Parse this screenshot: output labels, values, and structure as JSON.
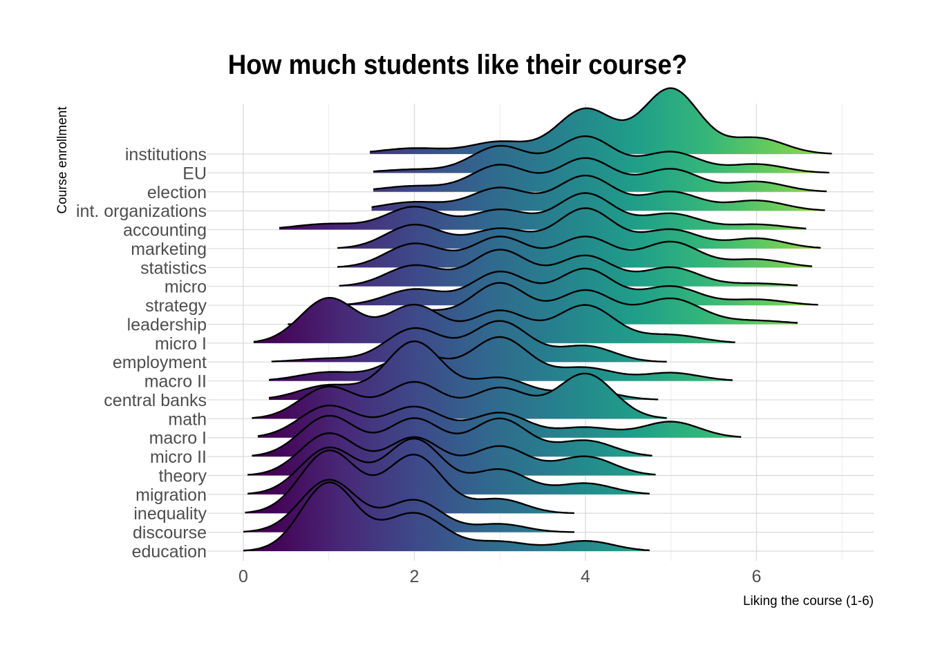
{
  "chart_data": {
    "type": "ridgeline",
    "title": "How much students like their course?",
    "xlabel": "Liking the course (1-6)",
    "ylabel": "Course enrollment",
    "xlim": [
      -0.4,
      7.4
    ],
    "x_ticks": [
      0,
      2,
      4,
      6
    ],
    "grid": true,
    "fill_colormap": "viridis",
    "fill_range": [
      1,
      6
    ],
    "categories": [
      "education",
      "discourse",
      "inequality",
      "migration",
      "theory",
      "micro II",
      "macro I",
      "math",
      "central banks",
      "macro II",
      "employment",
      "micro I",
      "leadership",
      "strategy",
      "micro",
      "statistics",
      "marketing",
      "accounting",
      "int. organizations",
      "election",
      "EU",
      "institutions"
    ],
    "series": [
      {
        "name": "education",
        "range": [
          0.0,
          4.75
        ],
        "peaks": [
          [
            1,
            2.35,
            0.32
          ],
          [
            2,
            1.3,
            0.35
          ],
          [
            3,
            0.32,
            0.33
          ],
          [
            4,
            0.35,
            0.33
          ]
        ]
      },
      {
        "name": "discourse",
        "range": [
          0.0,
          3.87
        ],
        "peaks": [
          [
            1,
            1.8,
            0.33
          ],
          [
            2,
            1.1,
            0.32
          ],
          [
            3,
            0.28,
            0.3
          ]
        ]
      },
      {
        "name": "inequality",
        "range": [
          0.02,
          3.87
        ],
        "peaks": [
          [
            1,
            2.15,
            0.33
          ],
          [
            2,
            2.0,
            0.33
          ],
          [
            3,
            0.48,
            0.3
          ]
        ]
      },
      {
        "name": "migration",
        "range": [
          0.05,
          4.75
        ],
        "peaks": [
          [
            1,
            1.6,
            0.33
          ],
          [
            2,
            1.9,
            0.33
          ],
          [
            3,
            0.85,
            0.32
          ],
          [
            4,
            0.38,
            0.32
          ]
        ]
      },
      {
        "name": "theory",
        "range": [
          0.05,
          4.82
        ],
        "peaks": [
          [
            1,
            1.45,
            0.33
          ],
          [
            2,
            1.3,
            0.32
          ],
          [
            3,
            1.0,
            0.33
          ],
          [
            4,
            0.65,
            0.33
          ]
        ]
      },
      {
        "name": "micro II",
        "range": [
          0.1,
          4.78
        ],
        "peaks": [
          [
            1,
            1.4,
            0.33
          ],
          [
            2,
            1.3,
            0.32
          ],
          [
            3,
            1.3,
            0.33
          ],
          [
            4,
            0.55,
            0.33
          ]
        ]
      },
      {
        "name": "macro I",
        "range": [
          0.17,
          5.82
        ],
        "peaks": [
          [
            1,
            1.1,
            0.34
          ],
          [
            2,
            1.05,
            0.33
          ],
          [
            3,
            0.85,
            0.33
          ],
          [
            4,
            0.35,
            0.34
          ],
          [
            5,
            0.55,
            0.33
          ]
        ]
      },
      {
        "name": "math",
        "range": [
          0.1,
          4.95
        ],
        "peaks": [
          [
            1,
            1.1,
            0.33
          ],
          [
            2,
            1.25,
            0.33
          ],
          [
            3,
            1.05,
            0.33
          ],
          [
            4,
            1.55,
            0.33
          ]
        ]
      },
      {
        "name": "central banks",
        "range": [
          0.3,
          4.85
        ],
        "peaks": [
          [
            1,
            0.5,
            0.35
          ],
          [
            2,
            2.0,
            0.33
          ],
          [
            3,
            0.75,
            0.34
          ],
          [
            4,
            0.35,
            0.33
          ]
        ]
      },
      {
        "name": "macro II",
        "range": [
          0.3,
          5.72
        ],
        "peaks": [
          [
            1,
            0.3,
            0.35
          ],
          [
            2,
            0.95,
            0.33
          ],
          [
            3,
            1.5,
            0.34
          ],
          [
            4,
            0.45,
            0.33
          ],
          [
            5,
            0.28,
            0.33
          ]
        ]
      },
      {
        "name": "employment",
        "range": [
          0.33,
          4.95
        ],
        "peaks": [
          [
            1,
            0.12,
            0.35
          ],
          [
            2,
            1.15,
            0.33
          ],
          [
            3,
            1.4,
            0.34
          ],
          [
            4,
            0.55,
            0.33
          ]
        ]
      },
      {
        "name": "micro I",
        "range": [
          0.12,
          5.75
        ],
        "peaks": [
          [
            1,
            1.55,
            0.33
          ],
          [
            2,
            1.3,
            0.33
          ],
          [
            3,
            1.1,
            0.33
          ],
          [
            4,
            1.3,
            0.34
          ],
          [
            5,
            0.28,
            0.35
          ]
        ]
      },
      {
        "name": "leadership",
        "range": [
          0.52,
          6.48
        ],
        "peaks": [
          [
            2,
            0.48,
            0.38
          ],
          [
            3,
            1.4,
            0.33
          ],
          [
            4,
            1.15,
            0.33
          ],
          [
            5,
            0.88,
            0.35
          ],
          [
            6,
            0.12,
            0.35
          ]
        ]
      },
      {
        "name": "strategy",
        "range": [
          1.12,
          6.72
        ],
        "peaks": [
          [
            2,
            0.55,
            0.33
          ],
          [
            3,
            1.15,
            0.33
          ],
          [
            4,
            1.25,
            0.33
          ],
          [
            5,
            0.65,
            0.33
          ],
          [
            6,
            0.2,
            0.33
          ]
        ]
      },
      {
        "name": "micro",
        "range": [
          1.12,
          6.48
        ],
        "peaks": [
          [
            2,
            0.72,
            0.33
          ],
          [
            3,
            1.25,
            0.33
          ],
          [
            4,
            1.05,
            0.33
          ],
          [
            5,
            0.65,
            0.33
          ],
          [
            6,
            0.1,
            0.33
          ]
        ]
      },
      {
        "name": "statistics",
        "range": [
          1.1,
          6.65
        ],
        "peaks": [
          [
            2,
            0.82,
            0.33
          ],
          [
            3,
            1.05,
            0.33
          ],
          [
            4,
            1.05,
            0.33
          ],
          [
            5,
            0.88,
            0.33
          ],
          [
            6,
            0.28,
            0.33
          ]
        ]
      },
      {
        "name": "marketing",
        "range": [
          1.1,
          6.75
        ],
        "peaks": [
          [
            2,
            0.82,
            0.33
          ],
          [
            3,
            0.68,
            0.33
          ],
          [
            4,
            1.38,
            0.33
          ],
          [
            5,
            0.65,
            0.33
          ],
          [
            6,
            0.35,
            0.33
          ]
        ]
      },
      {
        "name": "accounting",
        "range": [
          0.42,
          6.58
        ],
        "peaks": [
          [
            1,
            0.2,
            0.38
          ],
          [
            2,
            0.78,
            0.33
          ],
          [
            3,
            0.68,
            0.33
          ],
          [
            4,
            1.25,
            0.33
          ],
          [
            5,
            0.55,
            0.33
          ],
          [
            6,
            0.18,
            0.33
          ]
        ]
      },
      {
        "name": "int. organizations",
        "range": [
          1.5,
          6.8
        ],
        "peaks": [
          [
            2,
            0.3,
            0.38
          ],
          [
            3,
            0.78,
            0.33
          ],
          [
            4,
            1.2,
            0.33
          ],
          [
            5,
            0.65,
            0.33
          ],
          [
            6,
            0.35,
            0.33
          ]
        ]
      },
      {
        "name": "election",
        "range": [
          1.52,
          6.82
        ],
        "peaks": [
          [
            2,
            0.2,
            0.38
          ],
          [
            3,
            0.92,
            0.33
          ],
          [
            4,
            1.15,
            0.33
          ],
          [
            5,
            0.78,
            0.33
          ],
          [
            6,
            0.35,
            0.33
          ]
        ]
      },
      {
        "name": "EU",
        "range": [
          1.52,
          6.85
        ],
        "peaks": [
          [
            2,
            0.12,
            0.38
          ],
          [
            3,
            0.92,
            0.33
          ],
          [
            4,
            1.25,
            0.33
          ],
          [
            5,
            0.72,
            0.33
          ],
          [
            6,
            0.3,
            0.33
          ]
        ]
      },
      {
        "name": "institutions",
        "range": [
          1.48,
          6.88
        ],
        "peaks": [
          [
            2,
            0.2,
            0.38
          ],
          [
            3,
            0.42,
            0.33
          ],
          [
            4,
            1.55,
            0.33
          ],
          [
            5,
            2.25,
            0.33
          ],
          [
            6,
            0.55,
            0.33
          ]
        ]
      }
    ]
  }
}
